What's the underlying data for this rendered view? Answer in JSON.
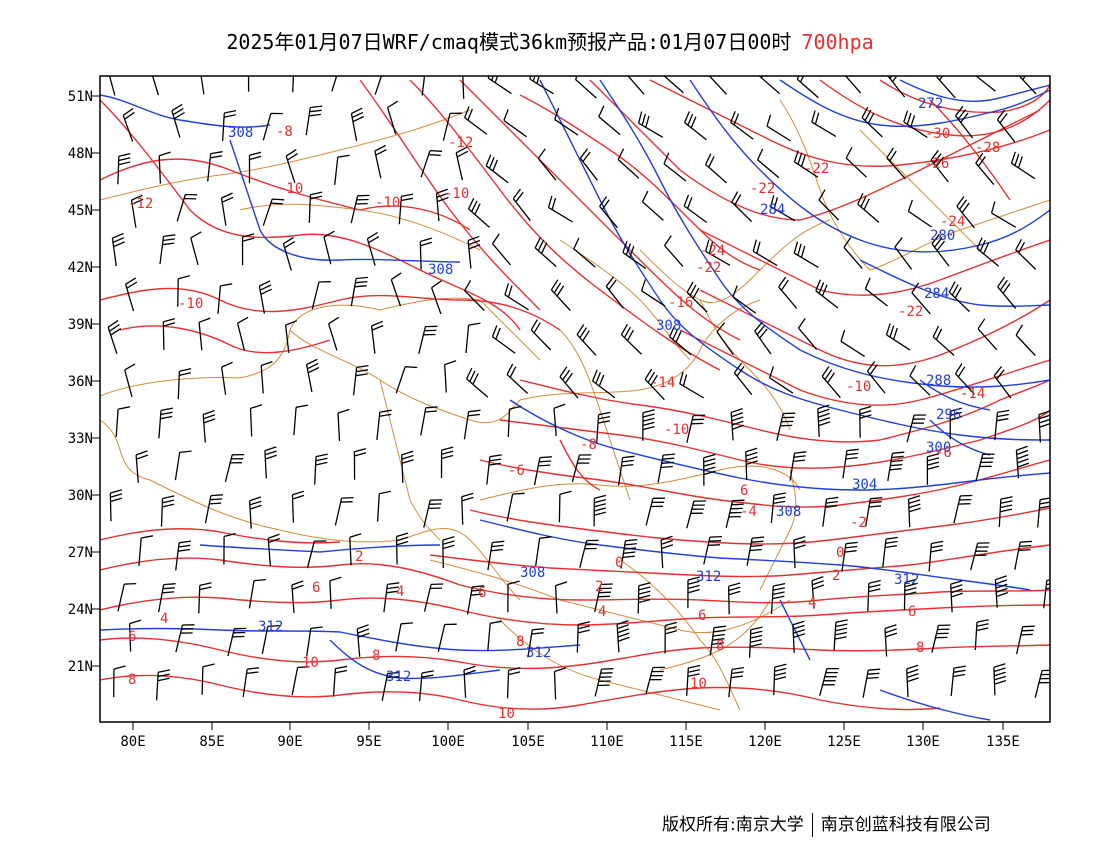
{
  "header": {
    "title": "2025年01月07日WRF/cmaq模式36km预报产品:01月07日00时",
    "level": "700hpa"
  },
  "colors": {
    "temperature": "#e8302f",
    "height": "#1f3fe0",
    "border": "#d98a3a",
    "wind": "#000000",
    "level_text": "#e8302f"
  },
  "axes": {
    "lon_ticks": [
      "80E",
      "85E",
      "90E",
      "95E",
      "100E",
      "105E",
      "110E",
      "115E",
      "120E",
      "125E",
      "130E",
      "135E"
    ],
    "lat_ticks": [
      "51N",
      "48N",
      "45N",
      "42N",
      "39N",
      "36N",
      "33N",
      "30N",
      "27N",
      "24N",
      "21N"
    ]
  },
  "height_labels": [
    "272",
    "280",
    "284",
    "288",
    "292",
    "296",
    "300",
    "304",
    "308",
    "312"
  ],
  "temp_labels": [
    "-30",
    "-28",
    "-26",
    "-24",
    "-22",
    "-16",
    "-14",
    "-12",
    "-10",
    "-8",
    "-6",
    "-4",
    "-2",
    "0",
    "2",
    "4",
    "6",
    "8",
    "10"
  ],
  "footer": {
    "left": "版权所有:南京大学",
    "right": "南京创蓝科技有限公司"
  }
}
